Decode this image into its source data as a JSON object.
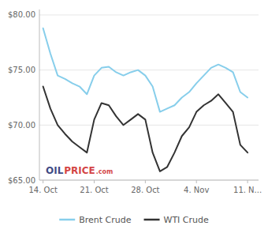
{
  "chart_data": {
    "type": "line",
    "x": [
      0,
      1,
      2,
      3,
      4,
      5,
      6,
      7,
      8,
      9,
      10,
      11,
      12,
      13,
      14,
      15,
      16,
      17,
      18,
      19,
      20,
      21,
      22,
      23,
      24,
      25,
      26,
      27,
      28
    ],
    "series": [
      {
        "name": "Brent Crude",
        "color": "#87CEEB",
        "values": [
          78.8,
          76.5,
          74.5,
          74.2,
          73.8,
          73.5,
          72.8,
          74.5,
          75.2,
          75.3,
          74.8,
          74.5,
          74.8,
          75.0,
          74.5,
          73.5,
          71.2,
          71.5,
          71.8,
          72.5,
          73.0,
          73.8,
          74.5,
          75.2,
          75.5,
          75.2,
          74.8,
          73.0,
          72.5
        ]
      },
      {
        "name": "WTI Crude",
        "color": "#333333",
        "values": [
          73.5,
          71.5,
          70.0,
          69.2,
          68.5,
          68.0,
          67.5,
          70.5,
          72.0,
          71.8,
          70.8,
          70.0,
          70.5,
          71.0,
          70.5,
          67.5,
          65.8,
          66.2,
          67.5,
          69.0,
          69.8,
          71.2,
          71.8,
          72.2,
          72.8,
          72.0,
          71.2,
          68.2,
          67.5
        ]
      }
    ],
    "xlim": [
      -0.5,
      29.5
    ],
    "xticks": [
      {
        "value": 0,
        "label": "14. Oct"
      },
      {
        "value": 7,
        "label": "21. Oct"
      },
      {
        "value": 14,
        "label": "28. Oct"
      },
      {
        "value": 21,
        "label": "4. Nov"
      },
      {
        "value": 28,
        "label": "11. N..."
      }
    ],
    "ylim": [
      65.0,
      80.5
    ],
    "yticks": [
      {
        "value": 65.0,
        "label": "$65.00"
      },
      {
        "value": 70.0,
        "label": "$70.00"
      },
      {
        "value": 75.0,
        "label": "$75.00"
      },
      {
        "value": 80.0,
        "label": "$80.00"
      }
    ],
    "grid": true,
    "legend": "bottom",
    "annotations": [
      {
        "text": "OIL",
        "color": "#1a2a6e"
      },
      {
        "text": "PRICE",
        "color": "#cc2222"
      },
      {
        "text": ".com",
        "color": "#cc2222"
      }
    ]
  }
}
